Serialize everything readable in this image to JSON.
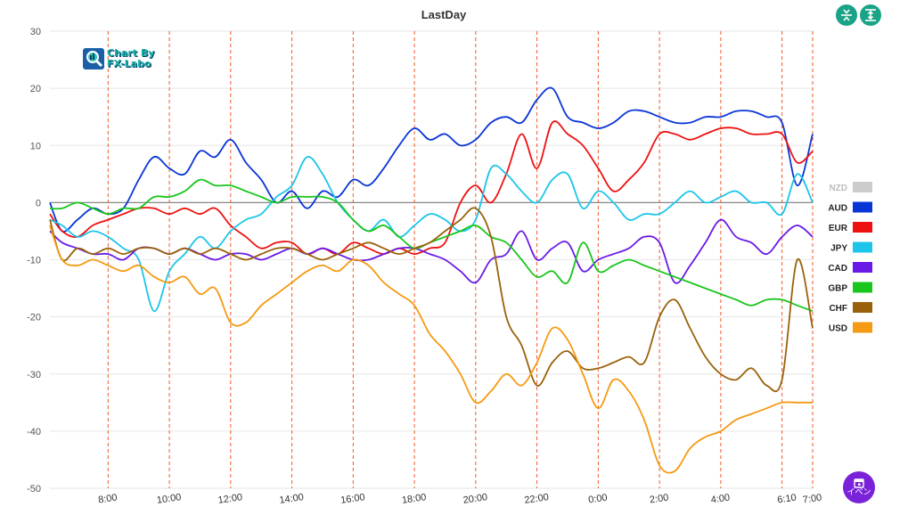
{
  "chart_data": {
    "type": "line",
    "title": "LastDay",
    "xlabel": "",
    "ylabel": "",
    "ylim": [
      -50,
      30
    ],
    "yticks": [
      30,
      20,
      10,
      0,
      -10,
      -20,
      -30,
      -40,
      -50
    ],
    "xticks": [
      {
        "label": "8:00",
        "t": 8.0
      },
      {
        "label": "10:00",
        "t": 10.0
      },
      {
        "label": "12:00",
        "t": 12.0
      },
      {
        "label": "14:00",
        "t": 14.0
      },
      {
        "label": "16:00",
        "t": 16.0
      },
      {
        "label": "18:00",
        "t": 18.0
      },
      {
        "label": "20:00",
        "t": 20.0
      },
      {
        "label": "22:00",
        "t": 22.0
      },
      {
        "label": "0:00",
        "t": 24.0
      },
      {
        "label": "2:00",
        "t": 26.0
      },
      {
        "label": "4:00",
        "t": 28.0
      },
      {
        "label": "6:10",
        "t": 30.17
      },
      {
        "label": "7:00",
        "t": 31.0
      }
    ],
    "xrange": [
      6.1,
      31.0
    ],
    "vlines": [
      8.0,
      10.0,
      12.0,
      14.0,
      16.0,
      18.0,
      20.0,
      22.0,
      24.0,
      26.0,
      28.0,
      30.0,
      31.0
    ],
    "grid": true,
    "legend_position": "right",
    "series": [
      {
        "name": "NZD",
        "color": "#cccccc",
        "visible": false,
        "x": [],
        "values": []
      },
      {
        "name": "AUD",
        "color": "#0a35d6",
        "visible": true,
        "x": [
          6.1,
          6.5,
          7,
          7.5,
          8,
          8.5,
          9,
          9.5,
          10,
          10.5,
          11,
          11.5,
          12,
          12.5,
          13,
          13.5,
          14,
          14.5,
          15,
          15.5,
          16,
          16.5,
          17,
          17.5,
          18,
          18.5,
          19,
          19.5,
          20,
          20.5,
          21,
          21.5,
          22,
          22.5,
          23,
          23.5,
          24,
          24.5,
          25,
          25.5,
          26,
          26.5,
          27,
          27.5,
          28,
          28.5,
          29,
          29.5,
          30,
          30.5,
          31
        ],
        "values": [
          0,
          -5,
          -3,
          -1,
          -2,
          -1,
          4,
          8,
          6,
          5,
          9,
          8,
          11,
          7,
          4,
          0,
          2,
          -1,
          2,
          1,
          4,
          3,
          6,
          10,
          13,
          11,
          12,
          10,
          11,
          14,
          15,
          14,
          18,
          20,
          15,
          14,
          13,
          14,
          16,
          16,
          15,
          14,
          14,
          15,
          15,
          16,
          16,
          15,
          14,
          3,
          12
        ]
      },
      {
        "name": "EUR",
        "color": "#ee1111",
        "visible": true,
        "x": [
          6.1,
          6.5,
          7,
          7.5,
          8,
          8.5,
          9,
          9.5,
          10,
          10.5,
          11,
          11.5,
          12,
          12.5,
          13,
          13.5,
          14,
          14.5,
          15,
          15.5,
          16,
          16.5,
          17,
          17.5,
          18,
          18.5,
          19,
          19.5,
          20,
          20.5,
          21,
          21.5,
          22,
          22.5,
          23,
          23.5,
          24,
          24.5,
          25,
          25.5,
          26,
          26.5,
          27,
          27.5,
          28,
          28.5,
          29,
          29.5,
          30,
          30.5,
          31
        ],
        "values": [
          -2,
          -5,
          -6,
          -4,
          -3,
          -2,
          -1,
          -1,
          -2,
          -1,
          -2,
          -1,
          -4,
          -6,
          -8,
          -7,
          -7,
          -9,
          -8,
          -9,
          -7,
          -8,
          -9,
          -8,
          -9,
          -8,
          -7,
          0,
          3,
          0,
          5,
          12,
          6,
          14,
          12,
          10,
          6,
          2,
          4,
          7,
          12,
          12,
          11,
          12,
          13,
          13,
          12,
          12,
          12,
          7,
          9
        ]
      },
      {
        "name": "JPY",
        "color": "#1cc5ea",
        "visible": true,
        "x": [
          6.1,
          6.5,
          7,
          7.5,
          8,
          8.5,
          9,
          9.5,
          10,
          10.5,
          11,
          11.5,
          12,
          12.5,
          13,
          13.5,
          14,
          14.5,
          15,
          15.5,
          16,
          16.5,
          17,
          17.5,
          18,
          18.5,
          19,
          19.5,
          20,
          20.5,
          21,
          21.5,
          22,
          22.5,
          23,
          23.5,
          24,
          24.5,
          25,
          25.5,
          26,
          26.5,
          27,
          27.5,
          28,
          28.5,
          29,
          29.5,
          30,
          30.5,
          31
        ],
        "values": [
          -3,
          -4,
          -6,
          -5,
          -6,
          -8,
          -10,
          -19,
          -12,
          -9,
          -6,
          -8,
          -5,
          -3,
          -2,
          1,
          3,
          8,
          5,
          0,
          -3,
          -5,
          -3,
          -6,
          -4,
          -2,
          -3,
          -5,
          -3,
          6,
          5,
          2,
          0,
          4,
          5,
          -1,
          2,
          0,
          -3,
          -2,
          -2,
          0,
          2,
          0,
          1,
          2,
          0,
          0,
          -2,
          5,
          0
        ]
      },
      {
        "name": "CAD",
        "color": "#6a1ae6",
        "visible": true,
        "x": [
          6.1,
          6.5,
          7,
          7.5,
          8,
          8.5,
          9,
          9.5,
          10,
          10.5,
          11,
          11.5,
          12,
          12.5,
          13,
          13.5,
          14,
          14.5,
          15,
          15.5,
          16,
          16.5,
          17,
          17.5,
          18,
          18.5,
          19,
          19.5,
          20,
          20.5,
          21,
          21.5,
          22,
          22.5,
          23,
          23.5,
          24,
          24.5,
          25,
          25.5,
          26,
          26.5,
          27,
          27.5,
          28,
          28.5,
          29,
          29.5,
          30,
          30.5,
          31
        ],
        "values": [
          -5,
          -7,
          -8,
          -9,
          -9,
          -10,
          -8,
          -8,
          -9,
          -8,
          -9,
          -10,
          -9,
          -9,
          -10,
          -9,
          -8,
          -9,
          -8,
          -9,
          -10,
          -10,
          -9,
          -8,
          -8,
          -9,
          -10,
          -12,
          -14,
          -10,
          -9,
          -5,
          -10,
          -8,
          -7,
          -12,
          -10,
          -9,
          -8,
          -6,
          -7,
          -14,
          -11,
          -7,
          -3,
          -6,
          -7,
          -9,
          -6,
          -4,
          -6
        ]
      },
      {
        "name": "GBP",
        "color": "#19c61c",
        "visible": true,
        "x": [
          6.1,
          6.5,
          7,
          7.5,
          8,
          8.5,
          9,
          9.5,
          10,
          10.5,
          11,
          11.5,
          12,
          12.5,
          13,
          13.5,
          14,
          14.5,
          15,
          15.5,
          16,
          16.5,
          17,
          17.5,
          18,
          18.5,
          19,
          19.5,
          20,
          20.5,
          21,
          21.5,
          22,
          22.5,
          23,
          23.5,
          24,
          24.5,
          25,
          25.5,
          26,
          26.5,
          27,
          27.5,
          28,
          28.5,
          29,
          29.5,
          30,
          30.5,
          31
        ],
        "values": [
          -1,
          -1,
          0,
          -1,
          -2,
          -1,
          -1,
          1,
          1,
          2,
          4,
          3,
          3,
          2,
          1,
          0,
          1,
          1,
          1,
          0,
          -3,
          -5,
          -4,
          -6,
          -8,
          -7,
          -6,
          -5,
          -4,
          -6,
          -7,
          -10,
          -13,
          -12,
          -14,
          -7,
          -12,
          -11,
          -10,
          -11,
          -12,
          -13,
          -14,
          -15,
          -16,
          -17,
          -18,
          -17,
          -17,
          -18,
          -19
        ]
      },
      {
        "name": "CHF",
        "color": "#99620a",
        "visible": true,
        "x": [
          6.1,
          6.5,
          7,
          7.5,
          8,
          8.5,
          9,
          9.5,
          10,
          10.5,
          11,
          11.5,
          12,
          12.5,
          13,
          13.5,
          14,
          14.5,
          15,
          15.5,
          16,
          16.5,
          17,
          17.5,
          18,
          18.5,
          19,
          19.5,
          20,
          20.5,
          21,
          21.5,
          22,
          22.5,
          23,
          23.5,
          24,
          24.5,
          25,
          25.5,
          26,
          26.5,
          27,
          27.5,
          28,
          28.5,
          29,
          29.5,
          30,
          30.5,
          31
        ],
        "values": [
          -3,
          -10,
          -8,
          -9,
          -8,
          -9,
          -8,
          -8,
          -9,
          -8,
          -9,
          -8,
          -9,
          -10,
          -9,
          -8,
          -8,
          -9,
          -10,
          -9,
          -8,
          -7,
          -8,
          -9,
          -8,
          -7,
          -5,
          -3,
          -1,
          -6,
          -20,
          -25,
          -32,
          -28,
          -26,
          -29,
          -29,
          -28,
          -27,
          -28,
          -20,
          -17,
          -22,
          -27,
          -30,
          -31,
          -29,
          -32,
          -31,
          -10,
          -22
        ]
      },
      {
        "name": "USD",
        "color": "#f59a12",
        "visible": true,
        "x": [
          6.1,
          6.5,
          7,
          7.5,
          8,
          8.5,
          9,
          9.5,
          10,
          10.5,
          11,
          11.5,
          12,
          12.5,
          13,
          13.5,
          14,
          14.5,
          15,
          15.5,
          16,
          16.5,
          17,
          17.5,
          18,
          18.5,
          19,
          19.5,
          20,
          20.5,
          21,
          21.5,
          22,
          22.5,
          23,
          23.5,
          24,
          24.5,
          25,
          25.5,
          26,
          26.5,
          27,
          27.5,
          28,
          28.5,
          29,
          29.5,
          30,
          30.5,
          31
        ],
        "values": [
          -4,
          -10,
          -11,
          -10,
          -11,
          -12,
          -11,
          -13,
          -14,
          -13,
          -16,
          -15,
          -21,
          -21,
          -18,
          -16,
          -14,
          -12,
          -11,
          -12,
          -10,
          -11,
          -14,
          -16,
          -18,
          -23,
          -26,
          -30,
          -35,
          -33,
          -30,
          -32,
          -28,
          -22,
          -24,
          -30,
          -36,
          -31,
          -33,
          -38,
          -46,
          -47,
          -43,
          -41,
          -40,
          -38,
          -37,
          -36,
          -35,
          -35,
          -35
        ]
      }
    ]
  },
  "logo": {
    "line1": "Chart By",
    "line2": "FX-Labo"
  },
  "controls": {
    "event_label": "イベン"
  }
}
